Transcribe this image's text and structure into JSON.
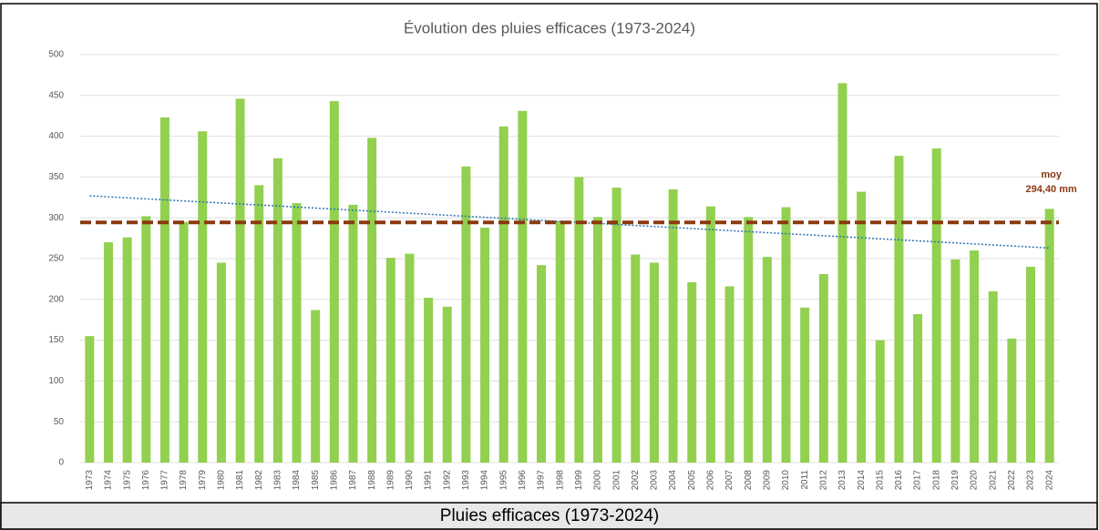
{
  "chart_data": {
    "type": "bar",
    "title": "Évolution des pluies efficaces (1973-2024)",
    "categories": [
      "1973",
      "1974",
      "1975",
      "1976",
      "1977",
      "1978",
      "1979",
      "1980",
      "1981",
      "1982",
      "1983",
      "1984",
      "1985",
      "1986",
      "1987",
      "1988",
      "1989",
      "1990",
      "1991",
      "1992",
      "1993",
      "1994",
      "1995",
      "1996",
      "1997",
      "1998",
      "1999",
      "2000",
      "2001",
      "2002",
      "2003",
      "2004",
      "2005",
      "2006",
      "2007",
      "2008",
      "2009",
      "2010",
      "2011",
      "2012",
      "2013",
      "2014",
      "2015",
      "2016",
      "2017",
      "2018",
      "2019",
      "2020",
      "2021",
      "2022",
      "2023",
      "2024"
    ],
    "values": [
      155,
      270,
      276,
      302,
      423,
      295,
      406,
      245,
      446,
      340,
      373,
      318,
      187,
      443,
      316,
      398,
      251,
      256,
      202,
      191,
      363,
      288,
      412,
      431,
      242,
      296,
      350,
      301,
      337,
      255,
      245,
      335,
      221,
      314,
      216,
      301,
      252,
      313,
      190,
      231,
      465,
      332,
      150,
      376,
      182,
      385,
      249,
      260,
      210,
      152,
      240,
      311
    ],
    "color": "#92d050",
    "ylim": [
      0,
      500
    ],
    "yticks": [
      0,
      50,
      100,
      150,
      200,
      250,
      300,
      350,
      400,
      450,
      500
    ],
    "grid": true,
    "mean_line": {
      "name": "moy",
      "value": 294.4,
      "label": "294,40 mm",
      "color": "#8b3a0f"
    },
    "trend": {
      "start": 327,
      "end": 263,
      "color": "#2e75b6"
    }
  },
  "caption": "Pluies efficaces (1973-2024)"
}
